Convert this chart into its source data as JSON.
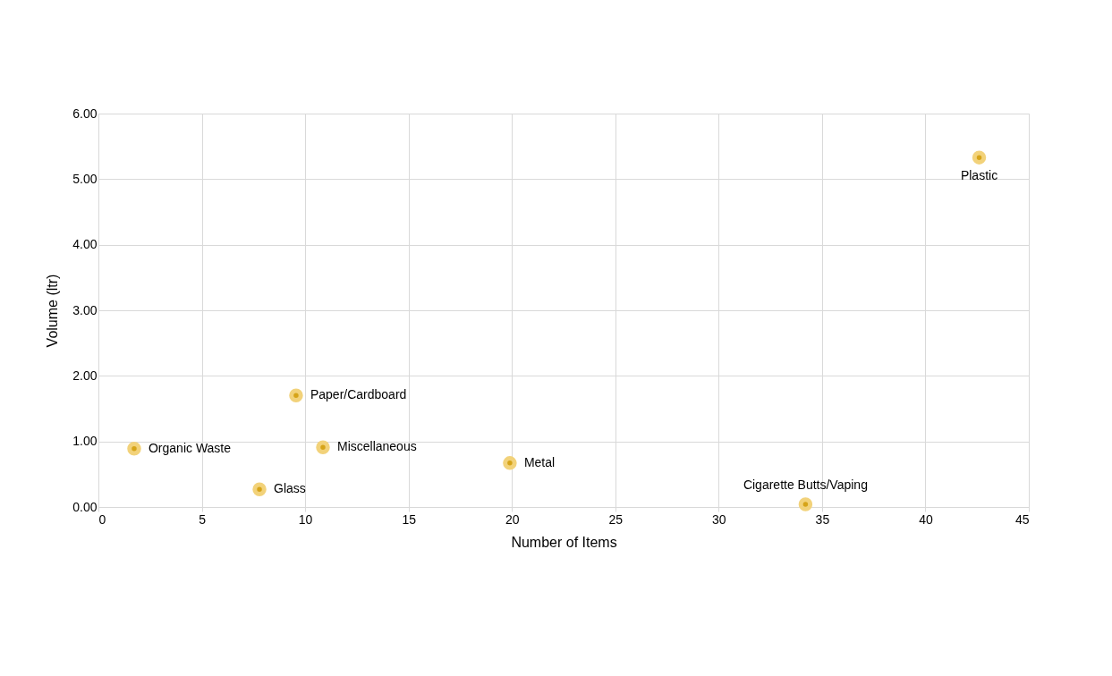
{
  "chart_data": {
    "type": "scatter",
    "xlabel": "Number of Items",
    "ylabel": "Volume (ltr)",
    "x": [
      1.73,
      7.79,
      9.56,
      10.86,
      19.9,
      34.2,
      42.6
    ],
    "series": [
      {
        "color": "#d6a419",
        "values": [
          0.89,
          0.27,
          1.7,
          0.91,
          0.67,
          0.04,
          5.33
        ]
      }
    ],
    "annotations": [
      {
        "text": "Organic Waste",
        "x": 1.73,
        "y": 0.89
      },
      {
        "text": "Glass",
        "x": 7.79,
        "y": 0.27
      },
      {
        "text": "Paper/Cardboard",
        "x": 9.56,
        "y": 1.7
      },
      {
        "text": "Miscellaneous",
        "x": 10.86,
        "y": 0.91
      },
      {
        "text": "Metal",
        "x": 19.9,
        "y": 0.67
      },
      {
        "text": "Cigarette Butts/Vaping",
        "x": 34.2,
        "y": 0.04
      },
      {
        "text": "Plastic",
        "x": 42.6,
        "y": 5.33
      }
    ],
    "xlim": [
      0,
      45
    ],
    "xticks": [
      0,
      5,
      10,
      15,
      20,
      25,
      30,
      35,
      40,
      45
    ],
    "ylim": [
      0,
      6
    ],
    "yticks": [
      {
        "value": 0,
        "label": "0.00"
      },
      {
        "value": 1,
        "label": "1.00"
      },
      {
        "value": 2,
        "label": "2.00"
      },
      {
        "value": 3,
        "label": "3.00"
      },
      {
        "value": 4,
        "label": "4.00"
      },
      {
        "value": 5,
        "label": "5.00"
      },
      {
        "value": 6,
        "label": "6.00"
      }
    ],
    "grid": true,
    "marker": "circle"
  }
}
